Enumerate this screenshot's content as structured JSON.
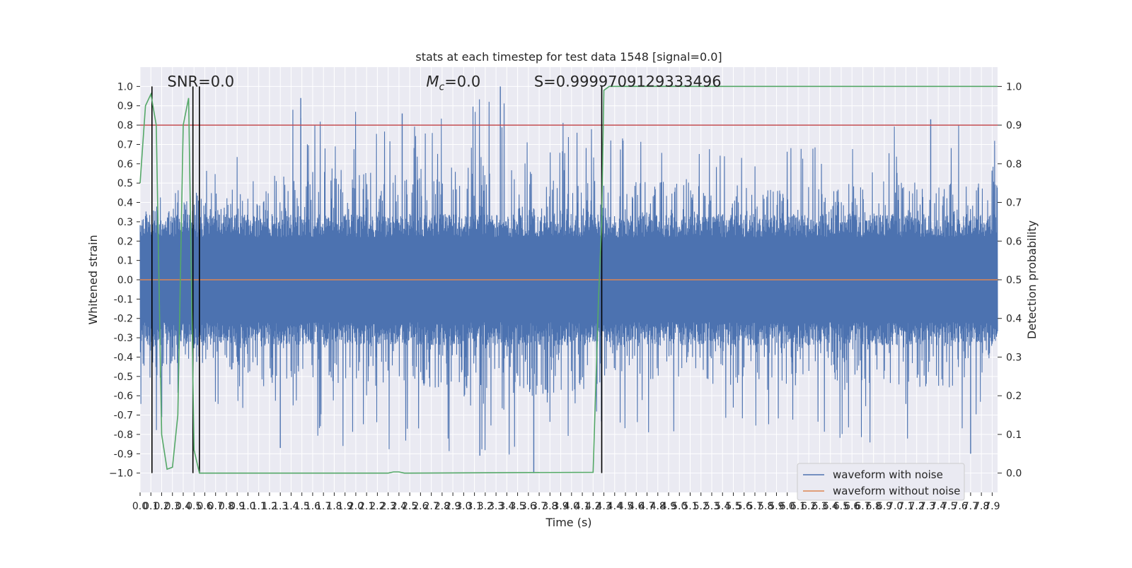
{
  "chart_data": {
    "type": "line",
    "title": "stats at each timestep for test data 1548 [signal=0.0]",
    "xlabel": "Time (s)",
    "ylabel": "Whitened strain",
    "y2label": "Detection probability",
    "xlim": [
      0.0,
      7.95
    ],
    "ylim": [
      -1.1,
      1.1
    ],
    "y2lim": [
      -0.05,
      1.05
    ],
    "x_ticks": [
      "0.0",
      "0.1",
      "0.2",
      "0.3",
      "0.4",
      "0.5",
      "0.6",
      "0.7",
      "0.8",
      "0.9",
      "1.0",
      "1.1",
      "1.2",
      "1.3",
      "1.4",
      "1.5",
      "1.6",
      "1.7",
      "1.8",
      "1.9",
      "2.0",
      "2.1",
      "2.2",
      "2.3",
      "2.4",
      "2.5",
      "2.6",
      "2.7",
      "2.8",
      "2.9",
      "3.0",
      "3.1",
      "3.2",
      "3.3",
      "3.4",
      "3.5",
      "3.6",
      "3.7",
      "3.8",
      "3.9",
      "4.0",
      "4.1",
      "4.2",
      "4.3",
      "4.4",
      "4.5",
      "4.6",
      "4.7",
      "4.8",
      "4.9",
      "5.0",
      "5.1",
      "5.2",
      "5.3",
      "5.4",
      "5.5",
      "5.6",
      "5.7",
      "5.8",
      "5.9",
      "6.0",
      "6.1",
      "6.2",
      "6.3",
      "6.4",
      "6.5",
      "6.6",
      "6.7",
      "6.8",
      "6.9",
      "7.0",
      "7.1",
      "7.2",
      "7.3",
      "7.4",
      "7.5",
      "7.6",
      "7.7",
      "7.8",
      "7.9"
    ],
    "y_ticks": [
      "1.0",
      "0.9",
      "0.8",
      "0.7",
      "0.6",
      "0.5",
      "0.4",
      "0.3",
      "0.2",
      "0.1",
      "0.0",
      "-0.1",
      "-0.2",
      "-0.3",
      "-0.4",
      "-0.5",
      "-0.6",
      "-0.7",
      "-0.8",
      "-0.9",
      "−1.0"
    ],
    "y2_ticks": [
      "1.0",
      "0.9",
      "0.8",
      "0.7",
      "0.6",
      "0.5",
      "0.4",
      "0.3",
      "0.2",
      "0.1",
      "0.0"
    ],
    "grid": true,
    "legend_position": "lower-right",
    "series": [
      {
        "name": "waveform with noise",
        "color": "#4c72b0",
        "axis": "left",
        "description_values": "dense noise, core amplitude about ±0.3, spikes up to ±1.0",
        "envelope_upper": [
          [
            0.0,
            0.45
          ],
          [
            0.1,
            0.45
          ],
          [
            0.2,
            0.6
          ],
          [
            0.3,
            0.5
          ],
          [
            0.4,
            0.55
          ],
          [
            0.5,
            0.65
          ],
          [
            0.6,
            0.58
          ],
          [
            0.7,
            0.7
          ],
          [
            0.8,
            0.6
          ],
          [
            0.9,
            0.75
          ],
          [
            1.0,
            0.6
          ],
          [
            1.5,
            0.95
          ],
          [
            2.3,
            0.85
          ],
          [
            3.3,
            0.99
          ],
          [
            4.0,
            0.8
          ],
          [
            4.5,
            0.78
          ],
          [
            5.0,
            0.75
          ],
          [
            5.5,
            0.7
          ],
          [
            6.0,
            0.68
          ],
          [
            6.5,
            0.7
          ],
          [
            7.0,
            0.8
          ],
          [
            7.3,
            0.82
          ],
          [
            7.9,
            0.8
          ]
        ],
        "envelope_lower": [
          [
            0.0,
            -0.73
          ],
          [
            0.2,
            -0.8
          ],
          [
            0.5,
            -0.6
          ],
          [
            1.0,
            -0.75
          ],
          [
            1.3,
            -0.87
          ],
          [
            3.3,
            -0.9
          ],
          [
            3.65,
            -1.0
          ],
          [
            4.5,
            -0.8
          ],
          [
            5.5,
            -0.82
          ],
          [
            6.0,
            -0.8
          ],
          [
            7.7,
            -0.9
          ],
          [
            7.9,
            -0.6
          ]
        ]
      },
      {
        "name": "waveform without noise",
        "color": "#dd8452",
        "axis": "left",
        "x": [
          0.0,
          7.95
        ],
        "y": [
          0.0,
          0.0
        ]
      },
      {
        "name": "",
        "color": "#55a868",
        "axis": "right",
        "x": [
          0.0,
          0.05,
          0.1,
          0.15,
          0.2,
          0.25,
          0.3,
          0.35,
          0.4,
          0.45,
          0.5,
          0.55,
          0.6,
          0.65,
          0.7,
          2.3,
          2.35,
          2.4,
          2.45,
          2.5,
          4.2,
          4.25,
          4.28,
          4.3,
          4.35,
          7.95
        ],
        "y": [
          0.75,
          0.95,
          0.98,
          0.9,
          0.1,
          0.01,
          0.015,
          0.15,
          0.9,
          0.97,
          0.06,
          0.0,
          0.0,
          0.0,
          0.0,
          0.0,
          0.003,
          0.003,
          0.0,
          0.0,
          0.002,
          0.45,
          0.65,
          0.99,
          1.0,
          1.0
        ]
      }
    ],
    "threshold_line": {
      "color": "#c44e52",
      "axis": "right",
      "value": 0.9
    },
    "vertical_markers": {
      "color": "#000000",
      "x": [
        0.11,
        0.49,
        0.55,
        4.28
      ],
      "y_range": [
        -1.0,
        1.0
      ]
    },
    "annotations": [
      {
        "id": "snr",
        "text": "SNR=0.0",
        "x": 0.2,
        "y": 1.0
      },
      {
        "id": "mc",
        "text_main": "M",
        "text_sub": "c",
        "text_rest": "=0.0",
        "x": 2.6,
        "y": 1.0
      },
      {
        "id": "s",
        "text": "S=0.9999709129333496",
        "x": 3.6,
        "y": 1.0
      }
    ]
  },
  "colors": {
    "plot_background": "#eaeaf2",
    "grid": "#ffffff",
    "page_background": "#ffffff"
  }
}
